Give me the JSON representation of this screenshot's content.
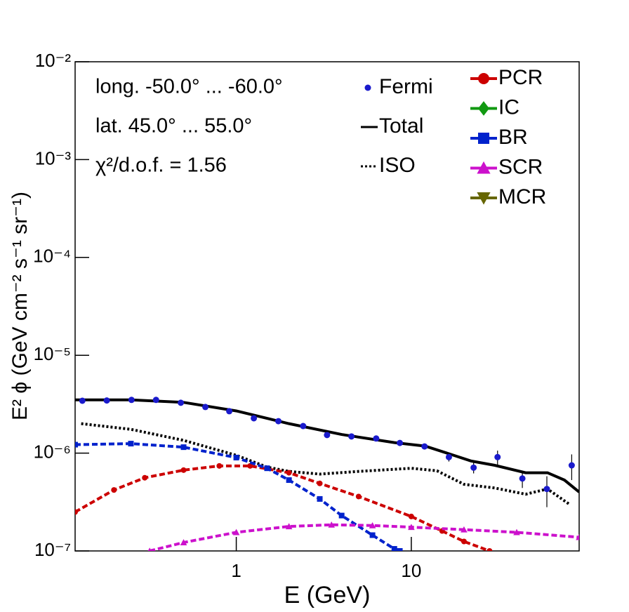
{
  "chart_data": {
    "type": "line",
    "xlabel": "E (GeV)",
    "ylabel": "E² ϕ (GeV cm⁻² s⁻¹ sr⁻¹)",
    "annotations": [
      "long. -50.0° ... -60.0°",
      "lat. 45.0° ... 55.0°",
      "χ²/d.o.f. = 1.56"
    ],
    "xlog": true,
    "ylog": true,
    "xlim": [
      0.12,
      91
    ],
    "ylim": [
      1e-07,
      0.01
    ],
    "xticks": [
      1,
      10
    ],
    "yticks": [
      {
        "value": 1e-07,
        "label": "10⁻⁷"
      },
      {
        "value": 1e-06,
        "label": "10⁻⁶"
      },
      {
        "value": 1e-05,
        "label": "10⁻⁵"
      },
      {
        "value": 0.0001,
        "label": "10⁻⁴"
      },
      {
        "value": 0.001,
        "label": "10⁻³"
      },
      {
        "value": 0.01,
        "label": "10⁻²"
      }
    ],
    "points": {
      "name": "Fermi",
      "color": "#1a1acc",
      "x": [
        0.132,
        0.182,
        0.252,
        0.348,
        0.482,
        0.666,
        0.912,
        1.26,
        1.74,
        2.41,
        3.3,
        4.55,
        6.3,
        8.6,
        11.9,
        16.4,
        22.7,
        31.1,
        43.1,
        59.5,
        82.5
      ],
      "values": [
        3.43e-06,
        3.45e-06,
        3.5e-06,
        3.5e-06,
        3.27e-06,
        2.96e-06,
        2.68e-06,
        2.27e-06,
        2.12e-06,
        1.89e-06,
        1.53e-06,
        1.48e-06,
        1.41e-06,
        1.27e-06,
        1.17e-06,
        9.1e-07,
        7.1e-07,
        9.1e-07,
        5.5e-07,
        4.3e-07,
        7.5e-07
      ],
      "errors": [
        5e-08,
        5e-08,
        5e-08,
        5e-08,
        5e-08,
        5e-08,
        5e-08,
        5e-08,
        5e-08,
        5e-08,
        5e-08,
        5e-08,
        5e-08,
        6e-08,
        8e-08,
        9e-08,
        9e-08,
        1.5e-07,
        1.1e-07,
        1.5e-07,
        2.2e-07
      ]
    },
    "lines": [
      {
        "name": "Total",
        "color": "#000000",
        "style": "solid",
        "x": [
          0.12,
          0.25,
          0.5,
          1,
          2,
          4,
          8,
          12,
          16,
          22,
          30,
          45,
          60,
          75,
          91
        ],
        "values": [
          3.5e-06,
          3.5e-06,
          3.3e-06,
          2.7e-06,
          2e-06,
          1.55e-06,
          1.28e-06,
          1.18e-06,
          1e-06,
          8.3e-07,
          7.5e-07,
          6.3e-07,
          6.3e-07,
          5.3e-07,
          4e-07
        ]
      },
      {
        "name": "ISO",
        "color": "#000000",
        "style": "dotted",
        "x": [
          0.13,
          0.25,
          0.5,
          1,
          1.5,
          2,
          3,
          5,
          10,
          14,
          20,
          30,
          45,
          60,
          80
        ],
        "values": [
          2e-06,
          1.75e-06,
          1.35e-06,
          9.5e-07,
          7.2e-07,
          6.5e-07,
          6.1e-07,
          6.5e-07,
          7e-07,
          6.6e-07,
          4.8e-07,
          4.4e-07,
          3.8e-07,
          4.3e-07,
          3e-07
        ]
      }
    ],
    "series": [
      {
        "name": "PCR",
        "color": "#cc0000",
        "marker": "circle",
        "x": [
          0.12,
          0.2,
          0.3,
          0.5,
          0.8,
          1.2,
          2,
          3,
          5,
          10,
          15,
          20,
          28
        ],
        "values": [
          2.5e-07,
          4.2e-07,
          5.6e-07,
          6.7e-07,
          7.4e-07,
          7.4e-07,
          6.3e-07,
          4.9e-07,
          3.6e-07,
          2.25e-07,
          1.6e-07,
          1.25e-07,
          1e-07
        ]
      },
      {
        "name": "IC",
        "color": "#119911",
        "marker": "diamond",
        "x": [],
        "values": []
      },
      {
        "name": "BR",
        "color": "#0022cc",
        "marker": "square",
        "x": [
          0.12,
          0.25,
          0.5,
          1,
          1.5,
          2,
          3,
          4,
          6,
          8,
          8.6
        ],
        "values": [
          1.22e-06,
          1.25e-06,
          1.15e-06,
          9e-07,
          7e-07,
          5.3e-07,
          3.4e-07,
          2.3e-07,
          1.45e-07,
          1.05e-07,
          1e-07
        ]
      },
      {
        "name": "SCR",
        "color": "#cc11cc",
        "marker": "triangle-up",
        "x": [
          0.32,
          0.5,
          1,
          2,
          3.5,
          6,
          10,
          20,
          40,
          91
        ],
        "values": [
          1e-07,
          1.22e-07,
          1.55e-07,
          1.78e-07,
          1.85e-07,
          1.82e-07,
          1.75e-07,
          1.65e-07,
          1.55e-07,
          1.38e-07
        ]
      },
      {
        "name": "MCR",
        "color": "#666600",
        "marker": "triangle-down",
        "x": [],
        "values": []
      }
    ]
  }
}
